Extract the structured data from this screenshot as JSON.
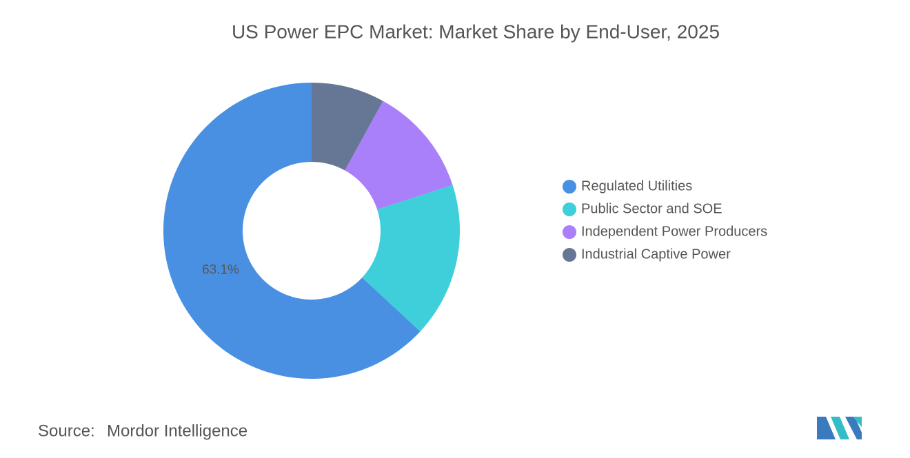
{
  "chart_data": {
    "type": "donut",
    "title": "US Power EPC Market: Market Share by End-User, 2025",
    "categories": [
      "Regulated Utilities",
      "Public Sector and SOE",
      "Independent Power Producers",
      "Industrial Captive Power"
    ],
    "values": [
      63.1,
      16.9,
      12.0,
      8.0
    ],
    "value_labels": [
      "63.1%",
      null,
      null,
      null
    ],
    "colors": [
      "#4a90e2",
      "#3ecfda",
      "#a97ffa",
      "#667796"
    ],
    "legend": "right"
  },
  "footer": {
    "source_label": "Source:",
    "source": "Mordor Intelligence"
  }
}
